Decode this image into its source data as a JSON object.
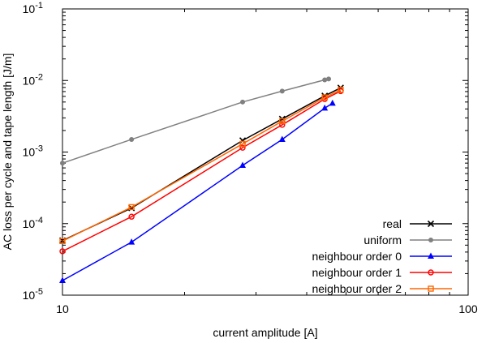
{
  "chart_data": {
    "type": "line",
    "title": "",
    "xlabel": "current amplitude [A]",
    "ylabel": "AC loss per cycle and tape length [J/m]",
    "xscale": "log",
    "yscale": "log",
    "xlim": [
      10,
      100
    ],
    "ylim": [
      1e-05,
      0.1
    ],
    "grid": false,
    "legend_position": "bottom-right",
    "x_ticks": [
      {
        "value": 10,
        "label": "10"
      },
      {
        "value": 100,
        "label": "100"
      }
    ],
    "y_ticks": [
      {
        "exp": -5,
        "label": "10",
        "sup": "-5"
      },
      {
        "exp": -4,
        "label": "10",
        "sup": "-4"
      },
      {
        "exp": -3,
        "label": "10",
        "sup": "-3"
      },
      {
        "exp": -2,
        "label": "10",
        "sup": "-2"
      },
      {
        "exp": -1,
        "label": "10",
        "sup": "-1"
      }
    ],
    "series": [
      {
        "name": "real",
        "color": "#000000",
        "marker": "x",
        "x": [
          10,
          14.8,
          27.8,
          34.8,
          44.3,
          48.5
        ],
        "y": [
          5.8e-05,
          0.000165,
          0.00145,
          0.0029,
          0.0061,
          0.0079
        ]
      },
      {
        "name": "uniform",
        "color": "#808080",
        "marker": "dot",
        "x": [
          10,
          14.8,
          27.8,
          34.8,
          44.3,
          45.3
        ],
        "y": [
          0.0007,
          0.0015,
          0.005,
          0.0071,
          0.0102,
          0.0105
        ]
      },
      {
        "name": "neighbour order 0",
        "color": "#0000ff",
        "marker": "triangle",
        "x": [
          10,
          14.8,
          27.8,
          34.8,
          44.3,
          46.3
        ],
        "y": [
          1.6e-05,
          5.5e-05,
          0.00065,
          0.0015,
          0.0041,
          0.0048
        ]
      },
      {
        "name": "neighbour order 1",
        "color": "#ff0000",
        "marker": "circle",
        "x": [
          10,
          14.8,
          27.8,
          34.8,
          44.3,
          48.5
        ],
        "y": [
          4.1e-05,
          0.000125,
          0.00115,
          0.0024,
          0.0055,
          0.0071
        ]
      },
      {
        "name": "neighbour order 2",
        "color": "#ff6600",
        "marker": "square",
        "x": [
          10,
          14.8,
          27.8,
          34.8,
          44.3,
          48.5
        ],
        "y": [
          5.7e-05,
          0.00017,
          0.0013,
          0.0027,
          0.0058,
          0.0074
        ]
      }
    ]
  }
}
